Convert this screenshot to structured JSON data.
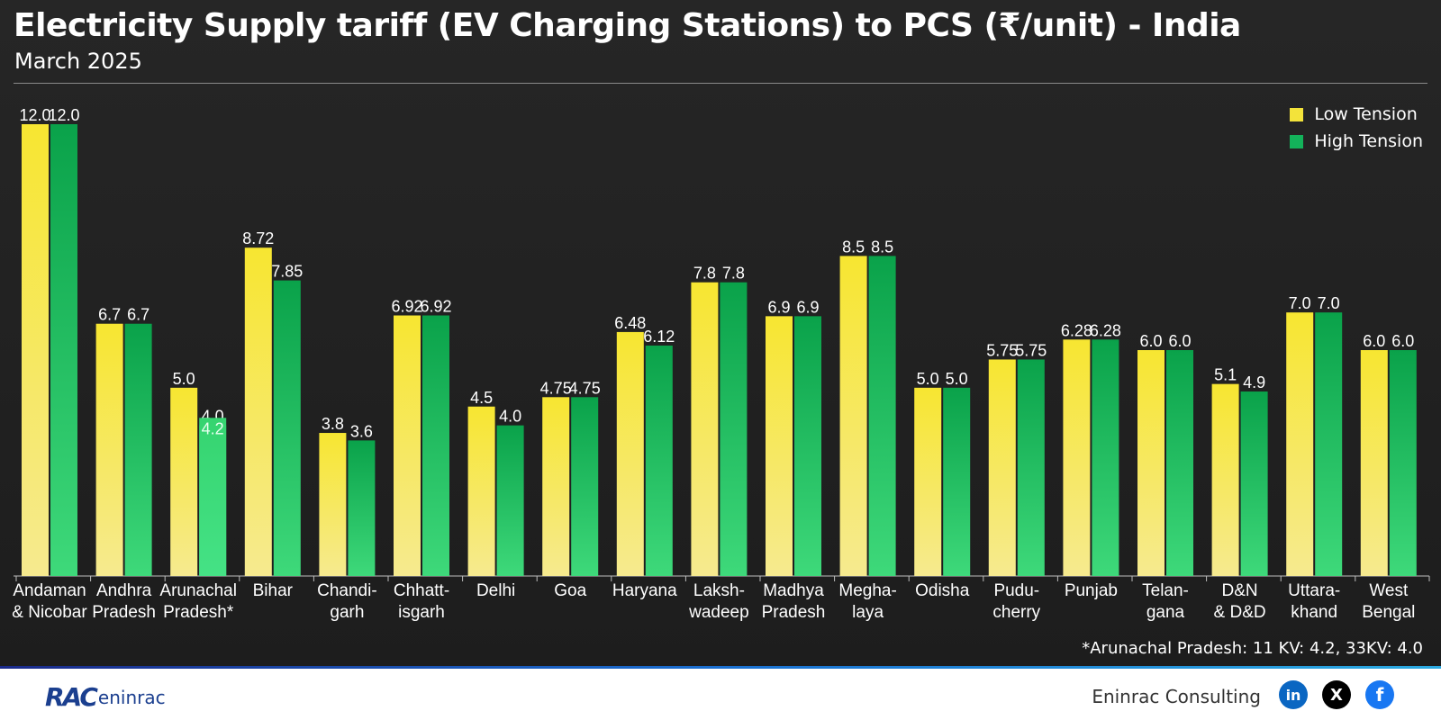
{
  "header": {
    "title": "Electricity Supply tariff (EV Charging Stations) to PCS (₹/unit) - India",
    "subtitle": "March 2025"
  },
  "footnote": "*Arunachal Pradesh: 11 KV: 4.2, 33KV: 4.0",
  "footer": {
    "logo_mark": "RAC",
    "logo_word": "eninrac",
    "brand": "Eninrac Consulting",
    "social": [
      {
        "name": "linkedin",
        "glyph": "in"
      },
      {
        "name": "x",
        "glyph": "X"
      },
      {
        "name": "facebook",
        "glyph": "f"
      }
    ]
  },
  "colors": {
    "low_tension": "#f3e33a",
    "high_tension": "#13b25a",
    "high_tension_alt": "#3ed97a",
    "background": "#232323",
    "accent": "#1a6fd0"
  },
  "chart_data": {
    "type": "bar",
    "title": "Electricity Supply tariff (EV Charging Stations) to PCS (₹/unit) - India",
    "subtitle": "March 2025",
    "xlabel": "",
    "ylabel": "",
    "ylim": [
      0,
      12
    ],
    "grid": false,
    "legend_position": "top-right",
    "categories": [
      [
        "Andaman",
        "& Nicobar"
      ],
      [
        "Andhra",
        "Pradesh"
      ],
      [
        "Arunachal",
        "Pradesh*"
      ],
      [
        "Bihar"
      ],
      [
        "Chandi-",
        "garh"
      ],
      [
        "Chhatt-",
        "isgarh"
      ],
      [
        "Delhi"
      ],
      [
        "Goa"
      ],
      [
        "Haryana"
      ],
      [
        "Laksh-",
        "wadeep"
      ],
      [
        "Madhya",
        "Pradesh"
      ],
      [
        "Megha-",
        "laya"
      ],
      [
        "Odisha"
      ],
      [
        "Pudu-",
        "cherry"
      ],
      [
        "Punjab"
      ],
      [
        "Telan-",
        "gana"
      ],
      [
        "D&N",
        "& D&D"
      ],
      [
        "Uttara-",
        "khand"
      ],
      [
        "West",
        "Bengal"
      ]
    ],
    "series": [
      {
        "name": "Low Tension",
        "values": [
          12.0,
          6.7,
          5.0,
          8.72,
          3.8,
          6.92,
          4.5,
          4.75,
          6.48,
          7.8,
          6.9,
          8.5,
          5.0,
          5.75,
          6.28,
          6.0,
          5.1,
          7.0,
          6.0
        ],
        "labels": [
          "12.0",
          "6.7",
          "5.0",
          "8.72",
          "3.8",
          "6.92",
          "4.5",
          "4.75",
          "6.48",
          "7.8",
          "6.9",
          "8.5",
          "5.0",
          "5.75",
          "6.28",
          "6.0",
          "5.1",
          "7.0",
          "6.0"
        ]
      },
      {
        "name": "High Tension",
        "values": [
          12.0,
          6.7,
          4.0,
          7.85,
          3.6,
          6.92,
          4.0,
          4.75,
          6.12,
          7.8,
          6.9,
          8.5,
          5.0,
          5.75,
          6.28,
          6.0,
          4.9,
          7.0,
          6.0
        ],
        "labels": [
          "12.0",
          "6.7",
          "4.0",
          "7.85",
          "3.6",
          "6.92",
          "4.0",
          "4.75",
          "6.12",
          "7.8",
          "6.9",
          "8.5",
          "5.0",
          "5.75",
          "6.28",
          "6.0",
          "4.9",
          "7.0",
          "6.0"
        ]
      }
    ],
    "annotations": [
      {
        "category_index": 2,
        "series": "High Tension",
        "segments": [
          {
            "label": "11 KV",
            "value": 4.2,
            "text": "4.2"
          },
          {
            "label": "33KV",
            "value": 4.0,
            "text": "4.0"
          }
        ]
      }
    ]
  }
}
